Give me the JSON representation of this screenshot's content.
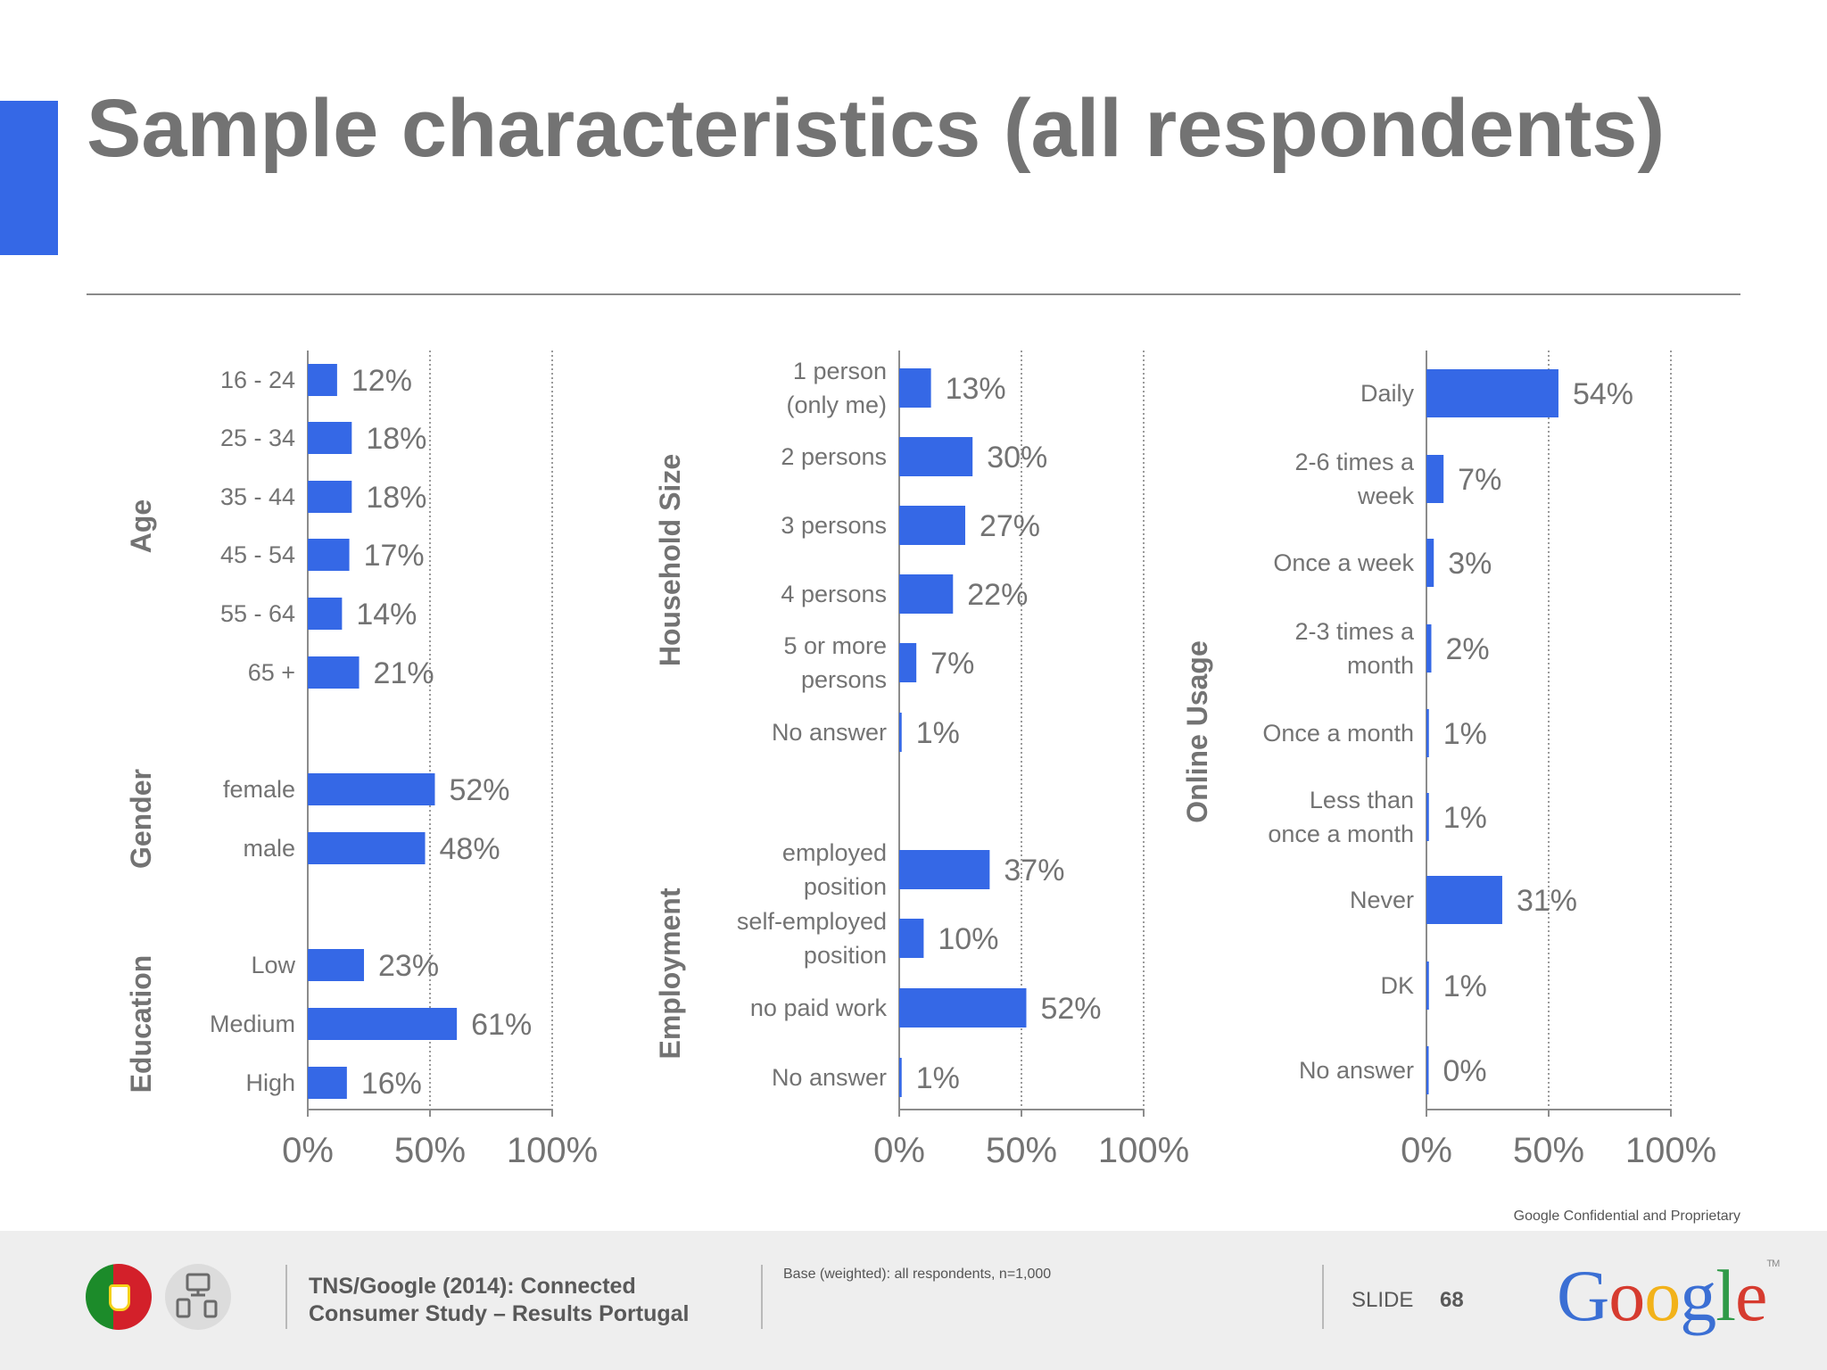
{
  "page": {
    "title": "Sample characteristics (all respondents)",
    "confidential": "Google Confidential and Proprietary"
  },
  "colors": {
    "accent": "#3568e6",
    "bar": "#3568e6",
    "text_gray": "#737373"
  },
  "chart_data": [
    {
      "type": "bar",
      "orientation": "horizontal",
      "xlim": [
        0,
        100
      ],
      "x_ticks": [
        "0%",
        "50%",
        "100%"
      ],
      "grid": "dotted vertical at 50% and 100%",
      "groups": [
        {
          "name": "Age",
          "categories": [
            "16 - 24",
            "25 - 34",
            "35 - 44",
            "45 - 54",
            "55 - 64",
            "65 +"
          ],
          "values": [
            12,
            18,
            18,
            17,
            14,
            21
          ],
          "labels": [
            "12%",
            "18%",
            "18%",
            "17%",
            "14%",
            "21%"
          ]
        },
        {
          "name": "Gender",
          "categories": [
            "female",
            "male"
          ],
          "values": [
            52,
            48
          ],
          "labels": [
            "52%",
            "48%"
          ]
        },
        {
          "name": "Education",
          "categories": [
            "Low",
            "Medium",
            "High"
          ],
          "values": [
            23,
            61,
            16
          ],
          "labels": [
            "23%",
            "61%",
            "16%"
          ]
        }
      ]
    },
    {
      "type": "bar",
      "orientation": "horizontal",
      "xlim": [
        0,
        100
      ],
      "x_ticks": [
        "0%",
        "50%",
        "100%"
      ],
      "grid": "dotted vertical at 50% and 100%",
      "groups": [
        {
          "name": "Household Size",
          "categories": [
            "1 person (only me)",
            "2 persons",
            "3 persons",
            "4 persons",
            "5 or more persons",
            "No answer"
          ],
          "values": [
            13,
            30,
            27,
            22,
            7,
            1
          ],
          "labels": [
            "13%",
            "30%",
            "27%",
            "22%",
            "7%",
            "1%"
          ]
        },
        {
          "name": "Employment",
          "categories": [
            "employed position",
            "self-employed position",
            "no paid work",
            "No answer"
          ],
          "values": [
            37,
            10,
            52,
            1
          ],
          "labels": [
            "37%",
            "10%",
            "52%",
            "1%"
          ]
        }
      ]
    },
    {
      "type": "bar",
      "orientation": "horizontal",
      "xlim": [
        0,
        100
      ],
      "x_ticks": [
        "0%",
        "50%",
        "100%"
      ],
      "grid": "dotted vertical at 50% and 100%",
      "groups": [
        {
          "name": "Online Usage",
          "categories": [
            "Daily",
            "2-6 times a week",
            "Once a week",
            "2-3 times a month",
            "Once a month",
            "Less than once a month",
            "Never",
            "DK",
            "No answer"
          ],
          "values": [
            54,
            7,
            3,
            2,
            1,
            1,
            31,
            1,
            0
          ],
          "labels": [
            "54%",
            "7%",
            "3%",
            "2%",
            "1%",
            "1%",
            "31%",
            "1%",
            "0%"
          ]
        }
      ]
    }
  ],
  "footer": {
    "source": "TNS/Google (2014): Connected Consumer Study – Results Portugal",
    "base": "Base (weighted): all respondents, n=1,000",
    "slide_label": "SLIDE",
    "slide_number": "68",
    "logo_text": "Google",
    "logo_letters": [
      "G",
      "o",
      "o",
      "g",
      "l",
      "e"
    ],
    "logo_colors": [
      "#3b6fd4",
      "#d63b2f",
      "#f2b21a",
      "#3b6fd4",
      "#2f9a48",
      "#d63b2f"
    ],
    "logo_tm": "TM",
    "icons": [
      "portugal-flag-icon",
      "devices-icon"
    ]
  }
}
